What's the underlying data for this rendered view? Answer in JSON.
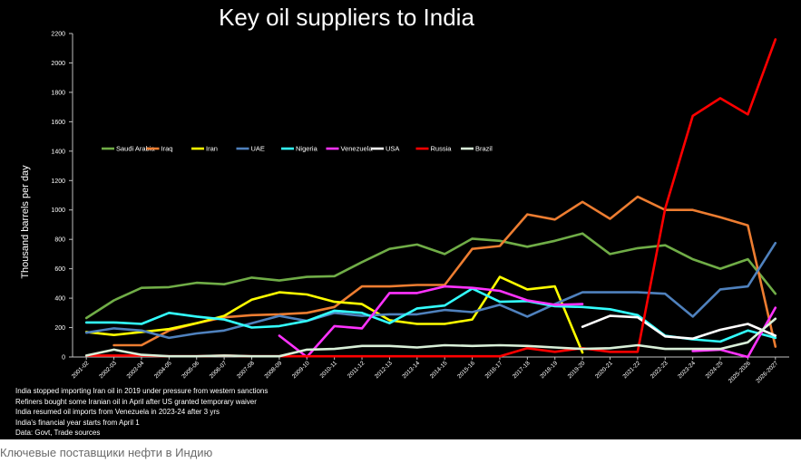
{
  "caption": "Ключевые поставщики нефти в Индию",
  "chart_data": {
    "type": "line",
    "title": "Key oil suppliers to India",
    "ylabel": "Thousand barrels per day",
    "xlabel": "",
    "ylim": [
      0,
      2200
    ],
    "yticks": [
      0,
      200,
      400,
      600,
      800,
      1000,
      1200,
      1400,
      1600,
      1800,
      2000,
      2200
    ],
    "grid": false,
    "legend": "top-left",
    "categories": [
      "2001-02",
      "2002-03",
      "2003-04",
      "2004-05",
      "2005-06",
      "2006-07",
      "2007-08",
      "2008-09",
      "2009-10",
      "2010-11",
      "2011-12",
      "2012-13",
      "2013-14",
      "2014-15",
      "2015-16",
      "2016-17",
      "2017-18",
      "2018-19",
      "2019-20",
      "2020-21",
      "2021-22",
      "2022-23",
      "2023-24",
      "2024-25",
      "2025-2026",
      "2026-2027"
    ],
    "series": [
      {
        "name": "Saudi Arabia",
        "color": "#70ad47",
        "values": [
          265,
          385,
          470,
          475,
          505,
          495,
          540,
          520,
          545,
          550,
          645,
          735,
          765,
          700,
          805,
          790,
          750,
          790,
          840,
          700,
          740,
          760,
          665,
          600,
          665,
          430
        ]
      },
      {
        "name": "Iraq",
        "color": "#ed7d31",
        "values": [
          null,
          80,
          80,
          180,
          230,
          270,
          285,
          290,
          300,
          340,
          480,
          480,
          490,
          490,
          735,
          755,
          970,
          935,
          1055,
          940,
          1090,
          1000,
          1000,
          950,
          895,
          70
        ]
      },
      {
        "name": "Iran",
        "color": "#ffff00",
        "values": [
          170,
          150,
          170,
          190,
          230,
          280,
          390,
          440,
          425,
          375,
          360,
          250,
          225,
          225,
          255,
          545,
          460,
          480,
          30,
          null,
          null,
          null,
          null,
          null,
          null,
          null
        ]
      },
      {
        "name": "UAE",
        "color": "#4f81bd",
        "values": [
          165,
          195,
          180,
          130,
          160,
          180,
          230,
          280,
          245,
          300,
          280,
          290,
          290,
          320,
          305,
          355,
          275,
          360,
          440,
          440,
          440,
          430,
          275,
          460,
          480,
          775
        ]
      },
      {
        "name": "Nigeria",
        "color": "#33ffff",
        "values": [
          235,
          235,
          225,
          300,
          275,
          255,
          200,
          210,
          245,
          315,
          300,
          230,
          330,
          350,
          465,
          375,
          380,
          345,
          340,
          325,
          285,
          145,
          120,
          105,
          180,
          130
        ]
      },
      {
        "name": "Venezuela",
        "color": "#ff33ff",
        "values": [
          null,
          null,
          null,
          null,
          null,
          null,
          null,
          145,
          0,
          210,
          195,
          435,
          435,
          480,
          470,
          450,
          385,
          355,
          360,
          null,
          null,
          null,
          40,
          50,
          0,
          335
        ]
      },
      {
        "name": "USA",
        "color": "#ffffff",
        "values": [
          null,
          null,
          null,
          null,
          null,
          null,
          null,
          null,
          null,
          null,
          null,
          null,
          null,
          null,
          null,
          null,
          null,
          null,
          205,
          280,
          270,
          140,
          125,
          185,
          225,
          145
        ]
      },
      {
        "name": "Russia",
        "color": "#ff0000",
        "values": [
          10,
          10,
          10,
          5,
          5,
          10,
          5,
          5,
          5,
          5,
          5,
          5,
          5,
          5,
          5,
          5,
          60,
          35,
          60,
          35,
          35,
          1010,
          1640,
          1760,
          1650,
          2160
        ]
      },
      {
        "name": "Brazil",
        "color": "#d9f0d9",
        "values": [
          10,
          50,
          15,
          5,
          5,
          10,
          5,
          5,
          50,
          55,
          75,
          75,
          65,
          80,
          75,
          80,
          75,
          65,
          55,
          60,
          80,
          55,
          55,
          55,
          100,
          260
        ]
      }
    ]
  },
  "notes": [
    "India stopped importing Iran oil in 2019 under pressure from western sanctions",
    "Refiners bought some Iranian oil in April after US granted temporary waiver",
    "India resumed oil imports from Venezuela in 2023-24 after 3 yrs",
    "India's financial year starts from April 1",
    "Data: Govt, Trade sources"
  ]
}
